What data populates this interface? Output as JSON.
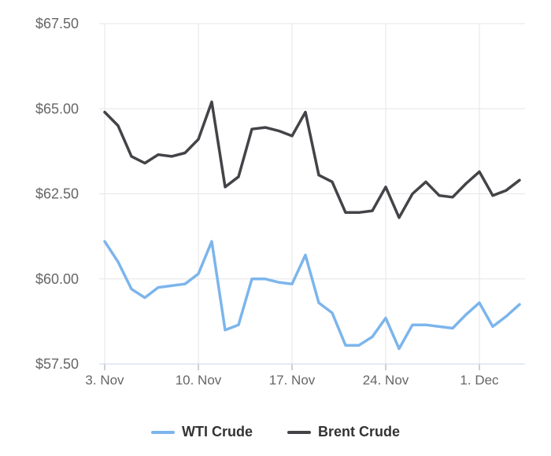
{
  "chart_data": {
    "type": "line",
    "title": "",
    "xlabel": "",
    "ylabel": "",
    "x": [
      "3 Nov",
      "4 Nov",
      "5 Nov",
      "6 Nov",
      "7 Nov",
      "8 Nov",
      "9 Nov",
      "10 Nov",
      "11 Nov",
      "12 Nov",
      "13 Nov",
      "14 Nov",
      "15 Nov",
      "16 Nov",
      "17 Nov",
      "18 Nov",
      "19 Nov",
      "20 Nov",
      "21 Nov",
      "22 Nov",
      "23 Nov",
      "24 Nov",
      "25 Nov",
      "26 Nov",
      "27 Nov",
      "28 Nov",
      "29 Nov",
      "30 Nov",
      "1 Dec",
      "2 Dec",
      "3 Dec",
      "4 Dec"
    ],
    "series": [
      {
        "name": "WTI Crude",
        "color": "#7cb5ec",
        "values": [
          61.1,
          60.5,
          59.7,
          59.45,
          59.75,
          59.8,
          59.85,
          60.15,
          61.1,
          58.5,
          58.65,
          60.0,
          60.0,
          59.9,
          59.85,
          60.7,
          59.3,
          59.0,
          58.05,
          58.05,
          58.3,
          58.85,
          57.95,
          58.65,
          58.65,
          58.6,
          58.55,
          58.95,
          59.3,
          58.6,
          58.9,
          59.25
        ]
      },
      {
        "name": "Brent Crude",
        "color": "#434348",
        "values": [
          64.9,
          64.5,
          63.6,
          63.4,
          63.65,
          63.6,
          63.7,
          64.1,
          65.2,
          62.7,
          63.0,
          64.4,
          64.45,
          64.35,
          64.2,
          64.9,
          63.05,
          62.85,
          61.95,
          61.95,
          62.0,
          62.7,
          61.8,
          62.5,
          62.85,
          62.45,
          62.4,
          62.8,
          63.15,
          62.45,
          62.6,
          62.9
        ]
      }
    ],
    "y_axis": {
      "tick_labels": [
        "$67.50",
        "$65.00",
        "$62.50",
        "$60.00",
        "$57.50"
      ],
      "tick_values": [
        67.5,
        65.0,
        62.5,
        60.0,
        57.5
      ],
      "min": 57.5,
      "max": 67.5,
      "grid": true
    },
    "x_axis": {
      "tick_labels": [
        "3. Nov",
        "10. Nov",
        "17. Nov",
        "24. Nov",
        "1. Dec"
      ],
      "tick_indices": [
        0,
        7,
        14,
        21,
        28
      ],
      "grid": true
    },
    "legend_position": "bottom-center"
  },
  "legend": {
    "items": [
      {
        "label": "WTI Crude",
        "color": "#7cb5ec"
      },
      {
        "label": "Brent Crude",
        "color": "#434348"
      }
    ]
  },
  "colors": {
    "grid_line": "#e6e6e6",
    "axis_line": "#ccd6eb",
    "tick_mark": "#9aa0ac",
    "axis_label": "#666666",
    "legend_text": "#333333",
    "background": "#ffffff"
  }
}
